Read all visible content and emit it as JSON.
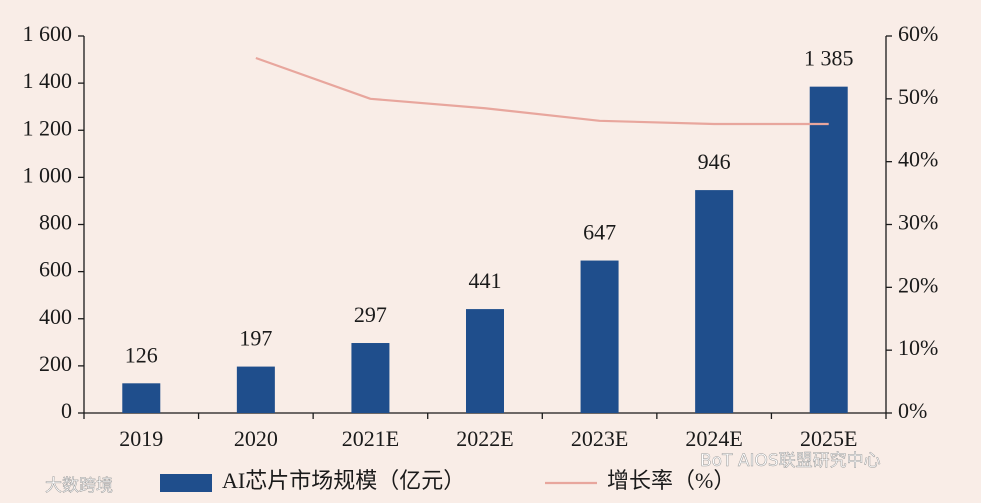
{
  "chart_data": {
    "type": "bar",
    "categories": [
      "2019",
      "2020",
      "2021E",
      "2022E",
      "2023E",
      "2024E",
      "2025E"
    ],
    "series": [
      {
        "name": "AI芯片市场规模（亿元）",
        "type": "bar",
        "color": "#1f4e8c",
        "values": [
          126,
          197,
          297,
          441,
          647,
          946,
          1385
        ],
        "value_labels": [
          "126",
          "197",
          "297",
          "441",
          "647",
          "946",
          "1 385"
        ]
      },
      {
        "name": "增长率（%）",
        "type": "line",
        "axis": "y2",
        "color": "#e8a69d",
        "values": [
          null,
          56.5,
          50,
          48.5,
          46.5,
          46,
          46
        ]
      }
    ],
    "ylim": [
      0,
      1600
    ],
    "yticks": [
      0,
      200,
      400,
      600,
      800,
      {
        "value": 1000,
        "label": "1 000"
      },
      {
        "value": 1200,
        "label": "1 200"
      },
      {
        "value": 1400,
        "label": "1 400"
      },
      {
        "value": 1600,
        "label": "1 600"
      }
    ],
    "y2lim": [
      0,
      60
    ],
    "y2ticks": [
      {
        "value": 0,
        "label": "0%"
      },
      {
        "value": 10,
        "label": "10%"
      },
      {
        "value": 20,
        "label": "20%"
      },
      {
        "value": 30,
        "label": "30%"
      },
      {
        "value": 40,
        "label": "40%"
      },
      {
        "value": 50,
        "label": "50%"
      },
      {
        "value": 60,
        "label": "60%"
      }
    ],
    "watermarks": [
      "大数跨境",
      "BoT AIOS联盟研究中心"
    ]
  }
}
